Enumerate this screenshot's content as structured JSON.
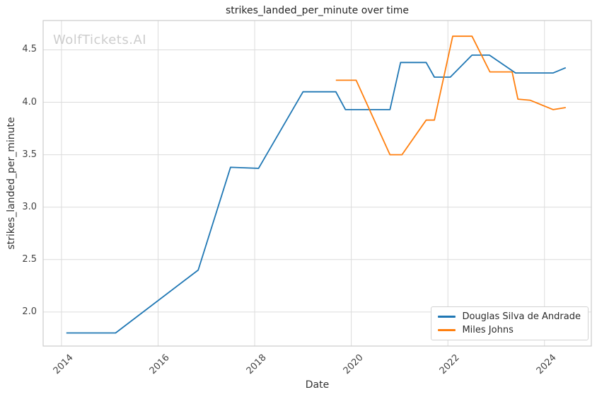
{
  "watermark": "WolfTickets.AI",
  "chart_data": {
    "type": "line",
    "title": "strikes_landed_per_minute over time",
    "xlabel": "Date",
    "ylabel": "strikes_landed_per_minute",
    "grid": true,
    "legend_position": "lower right",
    "x_axis": {
      "ticks": [
        "2014",
        "2016",
        "2018",
        "2020",
        "2022",
        "2024"
      ],
      "tick_values": [
        2014,
        2016,
        2018,
        2020,
        2022,
        2024
      ],
      "min": 2013.62,
      "max": 2024.97,
      "tick_rotation_deg": 45
    },
    "y_axis": {
      "ticks": [
        "2.0",
        "2.5",
        "3.0",
        "3.5",
        "4.0",
        "4.5"
      ],
      "tick_values": [
        2.0,
        2.5,
        3.0,
        3.5,
        4.0,
        4.5
      ],
      "min": 1.675,
      "max": 4.78
    },
    "colors": {
      "grid": "#dcdcdc",
      "spine": "#cccccc",
      "series_blue": "#1f77b4",
      "series_orange": "#ff7f0e"
    },
    "series": [
      {
        "name": "Douglas Silva de Andrade",
        "color": "#1f77b4",
        "points": [
          [
            2014.1,
            1.8
          ],
          [
            2015.12,
            1.8
          ],
          [
            2016.83,
            2.4
          ],
          [
            2017.5,
            3.38
          ],
          [
            2018.08,
            3.37
          ],
          [
            2019.0,
            4.1
          ],
          [
            2019.68,
            4.1
          ],
          [
            2019.88,
            3.93
          ],
          [
            2020.8,
            3.93
          ],
          [
            2021.02,
            4.38
          ],
          [
            2021.55,
            4.38
          ],
          [
            2021.72,
            4.24
          ],
          [
            2022.05,
            4.24
          ],
          [
            2022.5,
            4.45
          ],
          [
            2022.86,
            4.45
          ],
          [
            2023.4,
            4.28
          ],
          [
            2024.18,
            4.28
          ],
          [
            2024.44,
            4.33
          ]
        ]
      },
      {
        "name": "Miles Johns",
        "color": "#ff7f0e",
        "points": [
          [
            2019.68,
            4.21
          ],
          [
            2020.1,
            4.21
          ],
          [
            2020.8,
            3.5
          ],
          [
            2021.05,
            3.5
          ],
          [
            2021.55,
            3.83
          ],
          [
            2021.72,
            3.83
          ],
          [
            2022.1,
            4.63
          ],
          [
            2022.5,
            4.63
          ],
          [
            2022.87,
            4.29
          ],
          [
            2023.33,
            4.29
          ],
          [
            2023.45,
            4.03
          ],
          [
            2023.7,
            4.02
          ],
          [
            2024.18,
            3.93
          ],
          [
            2024.44,
            3.95
          ]
        ]
      }
    ]
  }
}
